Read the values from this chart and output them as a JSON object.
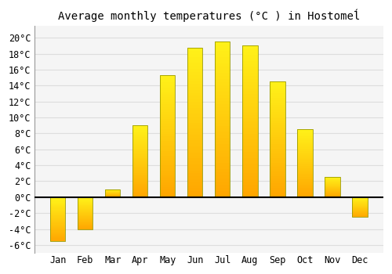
{
  "title": "Average monthly temperatures (°C ) in Hostomeĺ",
  "months": [
    "Jan",
    "Feb",
    "Mar",
    "Apr",
    "May",
    "Jun",
    "Jul",
    "Aug",
    "Sep",
    "Oct",
    "Nov",
    "Dec"
  ],
  "values": [
    -5.5,
    -4.0,
    1.0,
    9.0,
    15.3,
    18.7,
    19.5,
    19.0,
    14.5,
    8.5,
    2.5,
    -2.5
  ],
  "bar_color_top": "#FFD700",
  "bar_color_bottom": "#FFA500",
  "bar_edge_color": "#999900",
  "background_color": "#FFFFFF",
  "plot_bg_color": "#F5F5F5",
  "grid_color": "#DDDDDD",
  "yticks": [
    -6,
    -4,
    -2,
    0,
    2,
    4,
    6,
    8,
    10,
    12,
    14,
    16,
    18,
    20
  ],
  "ylim": [
    -7,
    21.5
  ],
  "title_fontsize": 10,
  "tick_fontsize": 8.5,
  "bar_width": 0.55
}
